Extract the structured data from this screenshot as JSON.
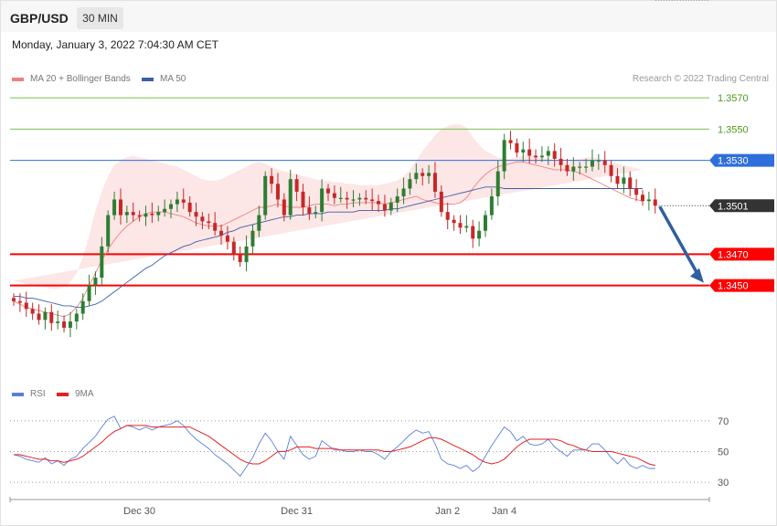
{
  "header": {
    "symbol": "GBP/USD",
    "timeframe": "30 MIN",
    "datetime": "Monday, January 3, 2022 7:04:30 AM CET"
  },
  "legend": {
    "ma20": "MA 20 + Bollinger Bands",
    "ma50": "MA 50",
    "copyright": "Research © 2022 Trading Central",
    "rsi": "RSI",
    "rsi_ma": "9MA"
  },
  "colors": {
    "ma20": "#f08080",
    "ma50": "#3b5ea8",
    "bollinger_fill": "#fde3e3",
    "candle_up": "#2e7d32",
    "candle_down": "#c62828",
    "resistance": "#7cbf50",
    "pivot": "#2f6fdc",
    "support": "#ff0000",
    "last_price": "#333333",
    "rsi": "#5b7fd9",
    "rsi_ma": "#e52222",
    "arrow": "#2f5f9e"
  },
  "chart_data": {
    "type": "candlestick",
    "title": "GBP/USD",
    "timeframe": "30 MIN",
    "x_ticks": [
      "Dec 30",
      "Dec 31",
      "Jan 2",
      "Jan 4"
    ],
    "x_tick_index": [
      20,
      45,
      69,
      78
    ],
    "ylim": [
      1.3399,
      1.358
    ],
    "grid": false,
    "levels": [
      {
        "value": 1.357,
        "label": "1.3570",
        "kind": "resistance"
      },
      {
        "value": 1.355,
        "label": "1.3550",
        "kind": "resistance"
      },
      {
        "value": 1.353,
        "label": "1.3530",
        "kind": "pivot"
      },
      {
        "value": 1.3501,
        "label": "1.3501",
        "kind": "last"
      },
      {
        "value": 1.347,
        "label": "1.3470",
        "kind": "support"
      },
      {
        "value": 1.345,
        "label": "1.3450",
        "kind": "support"
      }
    ],
    "projection": {
      "from": 1.3501,
      "to": 1.345
    },
    "close": [
      1.344,
      1.3439,
      1.3435,
      1.3432,
      1.3428,
      1.3433,
      1.3426,
      1.3427,
      1.3423,
      1.3427,
      1.3432,
      1.344,
      1.345,
      1.3455,
      1.3475,
      1.3495,
      1.3505,
      1.3495,
      1.3497,
      1.3495,
      1.3494,
      1.3496,
      1.3495,
      1.3497,
      1.3499,
      1.3502,
      1.3505,
      1.3503,
      1.3497,
      1.3494,
      1.3491,
      1.349,
      1.3485,
      1.3482,
      1.3478,
      1.347,
      1.3465,
      1.3475,
      1.3485,
      1.3495,
      1.352,
      1.3515,
      1.3505,
      1.3495,
      1.3518,
      1.351,
      1.35,
      1.3496,
      1.3497,
      1.3512,
      1.3509,
      1.3506,
      1.3506,
      1.3505,
      1.3505,
      1.3506,
      1.3505,
      1.3504,
      1.3502,
      1.3498,
      1.3503,
      1.3507,
      1.3512,
      1.3518,
      1.3522,
      1.352,
      1.3522,
      1.351,
      1.3497,
      1.3492,
      1.349,
      1.3487,
      1.3488,
      1.348,
      1.3485,
      1.3495,
      1.3507,
      1.3523,
      1.3543,
      1.3541,
      1.3535,
      1.3537,
      1.3533,
      1.3532,
      1.3533,
      1.3536,
      1.3531,
      1.3527,
      1.3523,
      1.3526,
      1.3526,
      1.3526,
      1.353,
      1.353,
      1.3527,
      1.352,
      1.3515,
      1.3519,
      1.3512,
      1.3508,
      1.3504,
      1.3505,
      1.3501
    ],
    "ma20": [
      1.344,
      1.3438,
      1.3436,
      1.3435,
      1.3434,
      1.3433,
      1.3432,
      1.3431,
      1.343,
      1.3432,
      1.3436,
      1.3442,
      1.345,
      1.3458,
      1.3466,
      1.3473,
      1.3479,
      1.3484,
      1.3488,
      1.3491,
      1.3494,
      1.3496,
      1.3497,
      1.3497,
      1.3497,
      1.3496,
      1.3495,
      1.3494,
      1.3492,
      1.349,
      1.3489,
      1.3488,
      1.3488,
      1.3488,
      1.349,
      1.3492,
      1.3494,
      1.3496,
      1.3498,
      1.35,
      1.35,
      1.3501,
      1.3502,
      1.3501,
      1.35,
      1.35,
      1.35,
      1.3501,
      1.3502,
      1.3502,
      1.3502,
      1.3501,
      1.3502,
      1.3502,
      1.3503,
      1.3503,
      1.3503,
      1.3503,
      1.3503,
      1.3502,
      1.3503,
      1.3504,
      1.3505,
      1.3506,
      1.3507,
      1.3505,
      1.3504,
      1.3503,
      1.3502,
      1.3502,
      1.3502,
      1.3503,
      1.3506,
      1.3512,
      1.3517,
      1.3521,
      1.3524,
      1.3526,
      1.3527,
      1.3528,
      1.3529,
      1.3529,
      1.3528,
      1.3527,
      1.3526,
      1.3525,
      1.3524,
      1.3524,
      1.3524,
      1.3523,
      1.3522,
      1.352,
      1.3518,
      1.3516,
      1.3514,
      1.3512,
      1.351,
      1.3508,
      1.3506,
      1.3505,
      1.3504
    ],
    "ma50": [
      1.3443,
      1.3443,
      1.3442,
      1.3442,
      1.3441,
      1.344,
      1.3439,
      1.3438,
      1.3437,
      1.3437,
      1.3436,
      1.3436,
      1.3437,
      1.3438,
      1.344,
      1.3443,
      1.3446,
      1.3449,
      1.3452,
      1.3455,
      1.3458,
      1.3461,
      1.3463,
      1.3466,
      1.3469,
      1.3471,
      1.3473,
      1.3475,
      1.3476,
      1.3478,
      1.3479,
      1.348,
      1.3481,
      1.3482,
      1.3484,
      1.3485,
      1.3487,
      1.3488,
      1.3489,
      1.349,
      1.3491,
      1.3492,
      1.3493,
      1.3494,
      1.3494,
      1.3495,
      1.3495,
      1.3496,
      1.3496,
      1.3496,
      1.3497,
      1.3497,
      1.3497,
      1.3497,
      1.3497,
      1.3498,
      1.3498,
      1.3498,
      1.3498,
      1.3498,
      1.3499,
      1.3499,
      1.35,
      1.3501,
      1.3502,
      1.3503,
      1.3504,
      1.3505,
      1.3506,
      1.3507,
      1.3508,
      1.3509,
      1.351,
      1.3511,
      1.3512,
      1.3513,
      1.3513,
      1.3513,
      1.3512,
      1.3512,
      1.3512,
      1.3512,
      1.3512,
      1.3512,
      1.3512,
      1.3512,
      1.3512,
      1.3512,
      1.3512,
      1.3512,
      1.3512,
      1.3512,
      1.3512,
      1.3512,
      1.3512,
      1.3512,
      1.3512,
      1.3512,
      1.3512,
      1.3512,
      1.3512
    ],
    "bb_upper": [
      1.3453,
      1.3452,
      1.3451,
      1.345,
      1.3449,
      1.3449,
      1.3448,
      1.3448,
      1.3449,
      1.3452,
      1.3458,
      1.3468,
      1.3482,
      1.3498,
      1.351,
      1.352,
      1.3527,
      1.353,
      1.3532,
      1.3533,
      1.3532,
      1.3531,
      1.353,
      1.3529,
      1.3528,
      1.3527,
      1.3526,
      1.3524,
      1.3522,
      1.352,
      1.3518,
      1.3517,
      1.3517,
      1.3518,
      1.352,
      1.3522,
      1.3524,
      1.3526,
      1.3528,
      1.3529,
      1.3528,
      1.3526,
      1.3524,
      1.3523,
      1.3522,
      1.3521,
      1.352,
      1.3519,
      1.3518,
      1.3517,
      1.3517,
      1.3516,
      1.3516,
      1.3515,
      1.3515,
      1.3514,
      1.3514,
      1.3514,
      1.3514,
      1.3515,
      1.3516,
      1.3517,
      1.352,
      1.3524,
      1.353,
      1.3536,
      1.3541,
      1.3546,
      1.355,
      1.3552,
      1.3553,
      1.3553,
      1.3551,
      1.3545,
      1.354,
      1.3536,
      1.3534,
      1.3532,
      1.3531,
      1.3531,
      1.3532,
      1.3533,
      1.3533,
      1.3533,
      1.3532,
      1.3531,
      1.353,
      1.3529,
      1.3529,
      1.353,
      1.3531,
      1.3532,
      1.3532,
      1.3531,
      1.353,
      1.3529,
      1.3528,
      1.3527,
      1.3526,
      1.3525,
      1.3524
    ],
    "bb_lower": [
      1.3432,
      1.343,
      1.3428,
      1.3426,
      1.3424,
      1.3422,
      1.342,
      1.3418,
      1.3414,
      1.3412,
      1.3412,
      1.3414,
      1.3418,
      1.3422,
      1.3426,
      1.343,
      1.3434,
      1.344,
      1.3446,
      1.3452,
      1.3457,
      1.3462,
      1.3466,
      1.3468,
      1.3469,
      1.3469,
      1.3468,
      1.3466,
      1.3463,
      1.3461,
      1.346,
      1.3459,
      1.346,
      1.3461,
      1.3462,
      1.3464,
      1.3466,
      1.3467,
      1.3469,
      1.3471,
      1.3473,
      1.3475,
      1.3477,
      1.3479,
      1.348,
      1.3481,
      1.3482,
      1.3483,
      1.3484,
      1.3485,
      1.3486,
      1.3486,
      1.3486,
      1.3486,
      1.3486,
      1.3486,
      1.3486,
      1.3485,
      1.3484,
      1.3482,
      1.348,
      1.3478,
      1.3476,
      1.3474,
      1.3473,
      1.3472,
      1.3471,
      1.347,
      1.347,
      1.347,
      1.3471,
      1.3473,
      1.3475,
      1.3478,
      1.3482,
      1.3487,
      1.3492,
      1.3497,
      1.3502,
      1.3505,
      1.3508,
      1.351,
      1.3512,
      1.3513,
      1.3512,
      1.3511,
      1.3509,
      1.3507,
      1.3505,
      1.3503,
      1.3501,
      1.3499,
      1.3497,
      1.3496,
      1.3495,
      1.3494,
      1.3494,
      1.3494,
      1.3494,
      1.3494,
      1.3494
    ],
    "rsi": {
      "yticks": [
        70,
        50,
        30
      ],
      "ylim": [
        20,
        80
      ],
      "rsi": [
        48,
        47,
        45,
        44,
        43,
        46,
        42,
        44,
        41,
        45,
        47,
        52,
        56,
        60,
        66,
        71,
        73,
        65,
        67,
        66,
        64,
        66,
        64,
        66,
        67,
        68,
        70,
        67,
        62,
        58,
        55,
        52,
        48,
        45,
        42,
        38,
        34,
        40,
        46,
        55,
        62,
        57,
        50,
        45,
        60,
        54,
        48,
        45,
        47,
        57,
        54,
        51,
        51,
        50,
        50,
        51,
        50,
        50,
        48,
        45,
        50,
        53,
        57,
        61,
        64,
        62,
        63,
        55,
        45,
        42,
        41,
        39,
        41,
        37,
        40,
        47,
        54,
        60,
        66,
        63,
        57,
        60,
        55,
        54,
        55,
        58,
        53,
        50,
        47,
        51,
        51,
        51,
        55,
        55,
        51,
        46,
        42,
        46,
        41,
        39,
        41,
        39,
        39
      ],
      "ma9": [
        48,
        48,
        47,
        46,
        45,
        45,
        44,
        44,
        43,
        44,
        45,
        47,
        50,
        53,
        56,
        60,
        63,
        65,
        67,
        67,
        67,
        67,
        66,
        66,
        66,
        66,
        66,
        66,
        66,
        64,
        62,
        60,
        57,
        54,
        51,
        48,
        45,
        43,
        42,
        42,
        44,
        47,
        50,
        50,
        51,
        53,
        53,
        53,
        52,
        52,
        52,
        52,
        51,
        51,
        51,
        51,
        51,
        51,
        51,
        50,
        50,
        51,
        52,
        53,
        55,
        57,
        59,
        59,
        58,
        56,
        54,
        52,
        50,
        48,
        45,
        43,
        42,
        43,
        45,
        49,
        53,
        56,
        58,
        58,
        58,
        58,
        58,
        57,
        55,
        54,
        52,
        51,
        50,
        50,
        50,
        50,
        49,
        48,
        47,
        46,
        44,
        42,
        41
      ]
    }
  }
}
